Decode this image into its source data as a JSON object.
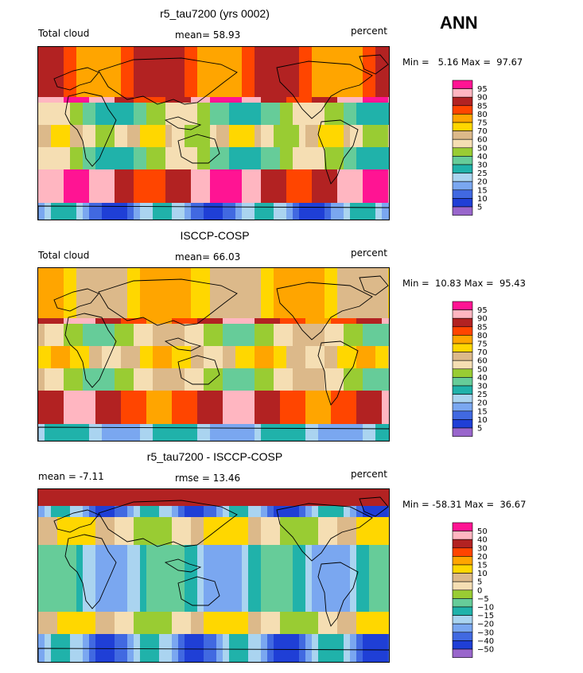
{
  "season": "ANN",
  "panels": [
    {
      "title": "r5_tau7200 (yrs 0002)",
      "left_label": "Total cloud",
      "center_label": "mean=  58.93",
      "right_label": "percent",
      "minmax": "Min =   5.16 Max =  97.67"
    },
    {
      "title": "ISCCP-COSP",
      "left_label": "Total cloud",
      "center_label": "mean=  66.03",
      "right_label": "percent",
      "minmax": "Min =  10.83 Max =  95.43"
    },
    {
      "title": "r5_tau7200 - ISCCP-COSP",
      "left_label": "mean =  -7.11",
      "center_label": "rmse =  13.46",
      "right_label": "percent",
      "minmax": "Min = -58.31 Max =  36.67"
    }
  ],
  "chart_data": [
    {
      "type": "heatmap",
      "title": "r5_tau7200 (yrs 0002)",
      "variable": "Total cloud",
      "units": "percent",
      "mean": 58.93,
      "min": 5.16,
      "max": 97.67,
      "levels": [
        5,
        10,
        15,
        20,
        25,
        30,
        40,
        50,
        60,
        70,
        75,
        80,
        85,
        90,
        95
      ],
      "colors": [
        "#9966cc",
        "#1f3fd6",
        "#4169e1",
        "#7aa7f0",
        "#aad4f0",
        "#20b2aa",
        "#66cc99",
        "#99cc33",
        "#f5deb3",
        "#dcb98a",
        "#ffd700",
        "#ffa500",
        "#ff4500",
        "#b22222",
        "#ffb6c1",
        "#ff1493"
      ],
      "legend": "right"
    },
    {
      "type": "heatmap",
      "title": "ISCCP-COSP",
      "variable": "Total cloud",
      "units": "percent",
      "mean": 66.03,
      "min": 10.83,
      "max": 95.43,
      "levels": [
        5,
        10,
        15,
        20,
        25,
        30,
        40,
        50,
        60,
        70,
        75,
        80,
        85,
        90,
        95
      ],
      "colors": [
        "#9966cc",
        "#1f3fd6",
        "#4169e1",
        "#7aa7f0",
        "#aad4f0",
        "#20b2aa",
        "#66cc99",
        "#99cc33",
        "#f5deb3",
        "#dcb98a",
        "#ffd700",
        "#ffa500",
        "#ff4500",
        "#b22222",
        "#ffb6c1",
        "#ff1493"
      ],
      "legend": "right"
    },
    {
      "type": "heatmap",
      "title": "r5_tau7200 - ISCCP-COSP",
      "units": "percent",
      "mean": -7.11,
      "rmse": 13.46,
      "min": -58.31,
      "max": 36.67,
      "levels": [
        -50,
        -40,
        -30,
        -20,
        -15,
        -10,
        -5,
        0,
        5,
        10,
        15,
        20,
        30,
        40,
        50
      ],
      "colors": [
        "#9966cc",
        "#1f3fd6",
        "#4169e1",
        "#7aa7f0",
        "#aad4f0",
        "#20b2aa",
        "#66cc99",
        "#99cc33",
        "#f5deb3",
        "#dcb98a",
        "#ffd700",
        "#ffa500",
        "#ff4500",
        "#b22222",
        "#ffb6c1",
        "#ff1493"
      ],
      "legend": "right"
    }
  ]
}
